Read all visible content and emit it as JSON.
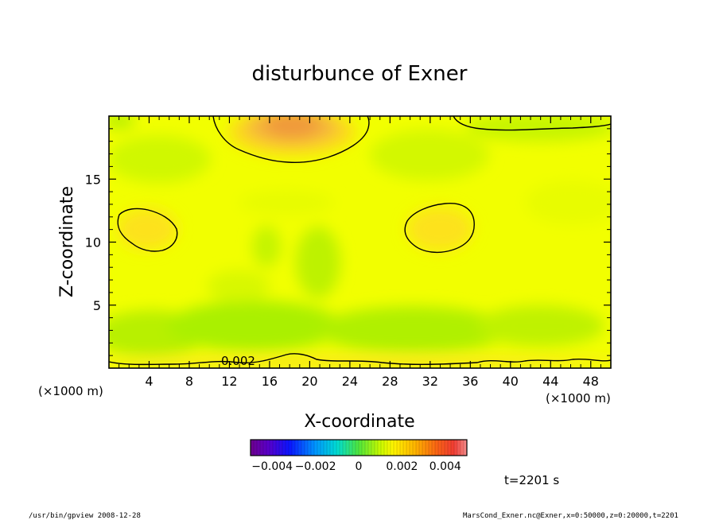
{
  "chart_data": {
    "type": "heatmap",
    "title": "disturbunce of Exner",
    "xlabel": "X-coordinate",
    "ylabel": "Z-coordinate",
    "x_unit": "(×1000 m)",
    "z_unit": "(×1000 m)",
    "xlim": [
      0,
      50
    ],
    "ylim": [
      0,
      20
    ],
    "xticks": [
      4,
      8,
      12,
      16,
      20,
      24,
      28,
      32,
      36,
      40,
      44,
      48
    ],
    "yticks": [
      5,
      10,
      15
    ],
    "contour_labels": [
      {
        "value": "0.002",
        "x": 13.5,
        "z": 0.5
      }
    ],
    "colorbar": {
      "range": [
        -0.005,
        0.005
      ],
      "tick_labels": [
        "−0.004",
        "−0.002",
        "0",
        "0.002",
        "0.004"
      ],
      "tick_values": [
        -0.004,
        -0.002,
        0,
        0.002,
        0.004
      ]
    },
    "field_features": [
      {
        "kind": "max",
        "x": 18,
        "z": 19.5,
        "value": 0.0035
      },
      {
        "kind": "max",
        "x": 4.5,
        "z": 11,
        "value": 0.0023
      },
      {
        "kind": "max",
        "x": 32,
        "z": 11,
        "value": 0.0023
      },
      {
        "kind": "min",
        "x": 21,
        "z": 3,
        "value": 0.0008
      },
      {
        "kind": "min",
        "x": 16,
        "z": 9,
        "value": 0.0009
      }
    ],
    "grid": false
  },
  "annotations": {
    "time": "t=2201 s",
    "footer_left": "/usr/bin/gpview   2008-12-28",
    "footer_right": "MarsCond_Exner.nc@Exner,x=0:50000,z=0:20000,t=2201"
  }
}
